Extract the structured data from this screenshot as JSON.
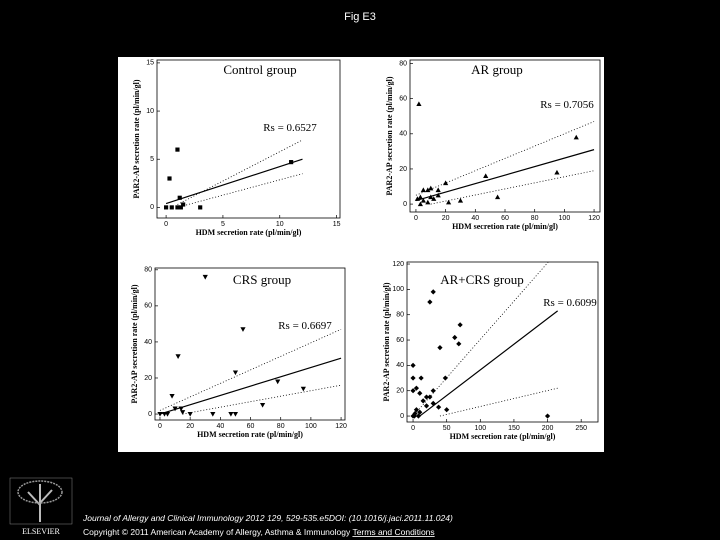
{
  "title": "Fig E3",
  "chart_data": [
    {
      "type": "scatter",
      "title": "Control group",
      "annotation": "Rs = 0.6527",
      "marker": "square",
      "xlabel": "HDM secretion rate (pl/min/gl)",
      "ylabel": "PAR2-AP secretion rate (pl/min/gl)",
      "x": [
        0,
        0.5,
        1,
        0.3,
        1,
        1.2,
        1.5,
        3,
        11,
        1.3
      ],
      "y": [
        0,
        0,
        0,
        3,
        6,
        1,
        0.3,
        0,
        4.7,
        0
      ],
      "xlim": [
        -0.8,
        15.3
      ],
      "ylim": [
        -1.1,
        15.3
      ],
      "xticks": [
        0,
        5,
        10,
        15
      ],
      "yticks": [
        0,
        5,
        10,
        15
      ],
      "lines": [
        {
          "style": "solid",
          "x": [
            0,
            12
          ],
          "y": [
            0.4,
            5
          ]
        },
        {
          "style": "dotted",
          "x": [
            1,
            12
          ],
          "y": [
            0.3,
            7
          ]
        },
        {
          "style": "dotted",
          "x": [
            1,
            12
          ],
          "y": [
            0,
            3.5
          ]
        }
      ]
    },
    {
      "type": "scatter",
      "title": "AR group",
      "annotation": "Rs = 0.7056",
      "marker": "triangle",
      "xlabel": "HDM secretion rate (pl/min/gl)",
      "ylabel": "PAR2-AP secretion rate (pl/min/gl)",
      "x": [
        2,
        1,
        3,
        5,
        8,
        10,
        15,
        20,
        10,
        12,
        15,
        22,
        30,
        47,
        55,
        95,
        108,
        5,
        8,
        3
      ],
      "y": [
        57,
        3,
        0,
        8,
        8,
        9,
        8,
        12,
        4,
        3,
        5,
        1,
        2,
        16,
        4,
        18,
        38,
        2,
        1,
        4
      ],
      "xlim": [
        -4,
        124
      ],
      "ylim": [
        -4.5,
        82
      ],
      "xticks": [
        0,
        20,
        40,
        60,
        80,
        100,
        120
      ],
      "yticks": [
        0,
        20,
        40,
        60,
        80
      ],
      "lines": [
        {
          "style": "solid",
          "x": [
            0,
            120
          ],
          "y": [
            2,
            31
          ]
        },
        {
          "style": "dotted",
          "x": [
            0,
            120
          ],
          "y": [
            5,
            47
          ]
        },
        {
          "style": "dotted",
          "x": [
            10,
            120
          ],
          "y": [
            0,
            19
          ]
        }
      ]
    },
    {
      "type": "scatter",
      "title": "CRS group",
      "annotation": "Rs = 0.6697",
      "marker": "triangle-down",
      "xlabel": "HDM secretion rate (pl/min/gl)",
      "ylabel": "PAR2-AP secretion rate (pl/min/gl)",
      "x": [
        30,
        55,
        12,
        8,
        10,
        14,
        15,
        20,
        35,
        47,
        50,
        50,
        68,
        78,
        95,
        5,
        3,
        0
      ],
      "y": [
        76,
        47,
        32,
        10,
        3,
        3,
        1,
        0,
        0,
        0,
        0,
        23,
        5,
        18,
        14,
        0,
        0,
        0
      ],
      "xlim": [
        -3.3,
        122.6
      ],
      "ylim": [
        -3.3,
        81
      ],
      "xticks": [
        0,
        20,
        40,
        60,
        80,
        100,
        120
      ],
      "yticks": [
        0,
        20,
        40,
        60,
        80
      ],
      "lines": [
        {
          "style": "solid",
          "x": [
            0,
            120
          ],
          "y": [
            0,
            31
          ]
        },
        {
          "style": "dotted",
          "x": [
            0,
            120
          ],
          "y": [
            2,
            47
          ]
        },
        {
          "style": "dotted",
          "x": [
            15,
            120
          ],
          "y": [
            0,
            16
          ]
        }
      ]
    },
    {
      "type": "scatter",
      "title": "AR+CRS group",
      "annotation": "Rs = 0.6099",
      "marker": "diamond",
      "xlabel": "HDM secretion rate (pl/min/gl)",
      "ylabel": "PAR2-AP secretion rate (pl/min/gl)",
      "x": [
        30,
        25,
        70,
        62,
        68,
        40,
        48,
        0,
        0,
        5,
        0,
        10,
        20,
        25,
        15,
        30,
        5,
        10,
        8,
        0,
        2,
        50,
        38,
        30,
        200,
        12,
        3,
        20
      ],
      "y": [
        98,
        90,
        72,
        62,
        57,
        54,
        30,
        40,
        30,
        22,
        20,
        18,
        15,
        15,
        12,
        10,
        5,
        3,
        0,
        0,
        0,
        5,
        7,
        20,
        0,
        30,
        2,
        8
      ],
      "xlim": [
        -9,
        275
      ],
      "ylim": [
        -4.7,
        121.6
      ],
      "xticks": [
        0,
        50,
        100,
        150,
        200,
        250
      ],
      "yticks": [
        0,
        20,
        40,
        60,
        80,
        100,
        120
      ],
      "lines": [
        {
          "style": "solid",
          "x": [
            10,
            215
          ],
          "y": [
            0,
            83
          ]
        },
        {
          "style": "dotted",
          "x": [
            0,
            215
          ],
          "y": [
            0,
            130
          ]
        },
        {
          "style": "dotted",
          "x": [
            40,
            215
          ],
          "y": [
            0,
            22
          ]
        }
      ]
    }
  ],
  "footer": {
    "citation": "Journal of Allergy and Clinical Immunology 2012 129, 529-535.e5DOI: (10.1016/j.jaci.2011.11.024)",
    "copyright": "Copyright © 2011 American Academy of Allergy, Asthma & Immunology",
    "link": "Terms and Conditions",
    "logo": "ELSEVIER"
  }
}
